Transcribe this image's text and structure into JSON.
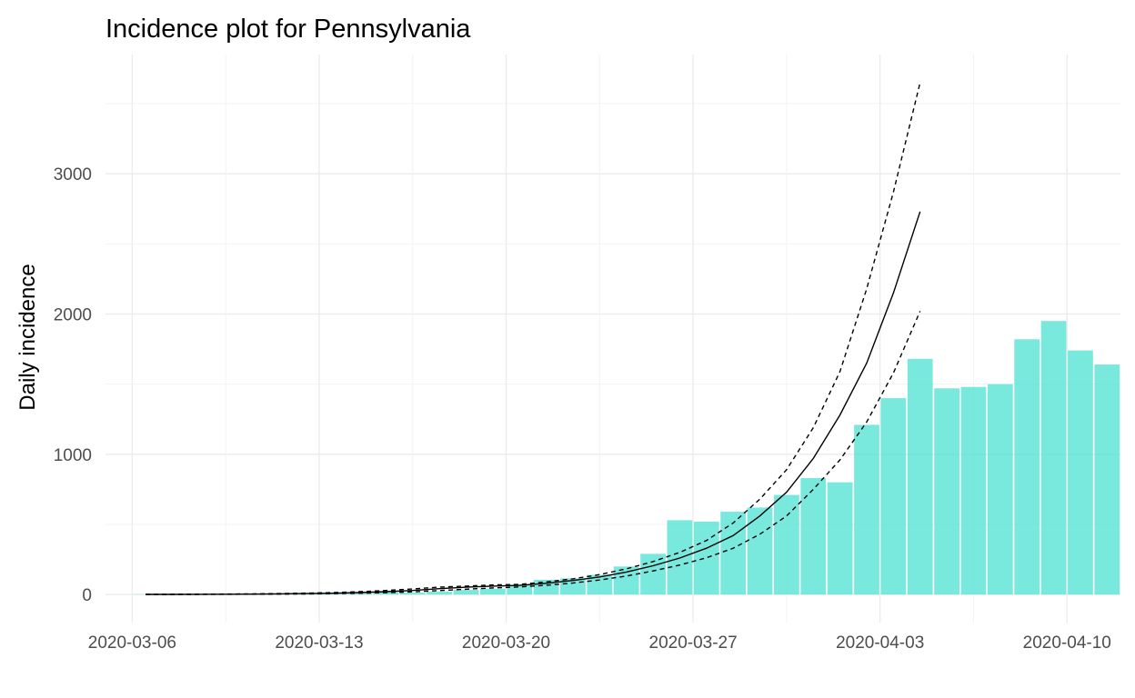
{
  "chart_data": {
    "type": "bar",
    "title": "Incidence plot for Pennsylvania",
    "xlabel": "",
    "ylabel": "Daily incidence",
    "x_ticks": [
      "2020-03-06",
      "2020-03-13",
      "2020-03-20",
      "2020-03-27",
      "2020-04-03",
      "2020-04-10"
    ],
    "y_ticks": [
      0,
      1000,
      2000,
      3000
    ],
    "ylim": [
      -200,
      3850
    ],
    "xlim": [
      "2020-03-05",
      "2020-04-12"
    ],
    "grid": true,
    "bar_color": "#40E0D0",
    "bars": {
      "dates": [
        "2020-03-06",
        "2020-03-07",
        "2020-03-08",
        "2020-03-09",
        "2020-03-10",
        "2020-03-11",
        "2020-03-12",
        "2020-03-13",
        "2020-03-14",
        "2020-03-15",
        "2020-03-16",
        "2020-03-17",
        "2020-03-18",
        "2020-03-19",
        "2020-03-20",
        "2020-03-21",
        "2020-03-22",
        "2020-03-23",
        "2020-03-24",
        "2020-03-25",
        "2020-03-26",
        "2020-03-27",
        "2020-03-28",
        "2020-03-29",
        "2020-03-30",
        "2020-03-31",
        "2020-04-01",
        "2020-04-02",
        "2020-04-03",
        "2020-04-04",
        "2020-04-05",
        "2020-04-06",
        "2020-04-07",
        "2020-04-08",
        "2020-04-09",
        "2020-04-10",
        "2020-04-11"
      ],
      "values": [
        2,
        2,
        3,
        2,
        4,
        6,
        5,
        12,
        8,
        16,
        13,
        20,
        33,
        42,
        70,
        105,
        115,
        140,
        200,
        290,
        530,
        520,
        590,
        620,
        710,
        830,
        800,
        1210,
        1400,
        1680,
        1470,
        1480,
        1500,
        1820,
        1950,
        1740,
        1640
      ]
    },
    "fit": {
      "dates": [
        "2020-03-06",
        "2020-03-07",
        "2020-03-08",
        "2020-03-09",
        "2020-03-10",
        "2020-03-11",
        "2020-03-12",
        "2020-03-13",
        "2020-03-14",
        "2020-03-15",
        "2020-03-16",
        "2020-03-17",
        "2020-03-18",
        "2020-03-19",
        "2020-03-20",
        "2020-03-21",
        "2020-03-22",
        "2020-03-23",
        "2020-03-24",
        "2020-03-25",
        "2020-03-26",
        "2020-03-27",
        "2020-03-28",
        "2020-03-29",
        "2020-03-30",
        "2020-03-31",
        "2020-04-01",
        "2020-04-02",
        "2020-04-03",
        "2020-04-04"
      ],
      "fit": [
        0.6,
        1.0,
        1.4,
        2.1,
        3.1,
        4.5,
        6.6,
        9.6,
        14,
        20,
        29,
        42,
        52,
        60,
        65,
        80,
        100,
        125,
        160,
        205,
        260,
        330,
        420,
        560,
        730,
        970,
        1280,
        1650,
        2150,
        2730
      ],
      "upper": [
        1,
        1.5,
        2.2,
        3.2,
        4.7,
        6.8,
        10,
        14,
        20,
        29,
        40,
        53,
        60,
        68,
        72,
        90,
        112,
        142,
        183,
        235,
        300,
        385,
        510,
        680,
        890,
        1190,
        1590,
        2180,
        2870,
        3650
      ],
      "lower": [
        0.4,
        0.6,
        0.9,
        1.3,
        2,
        3,
        4.3,
        6.3,
        9,
        13,
        19,
        28,
        38,
        47,
        54,
        66,
        82,
        103,
        132,
        168,
        210,
        262,
        330,
        430,
        560,
        750,
        960,
        1230,
        1580,
        2020
      ]
    },
    "line_styles": {
      "fit": "solid",
      "ci": "dashed"
    }
  }
}
